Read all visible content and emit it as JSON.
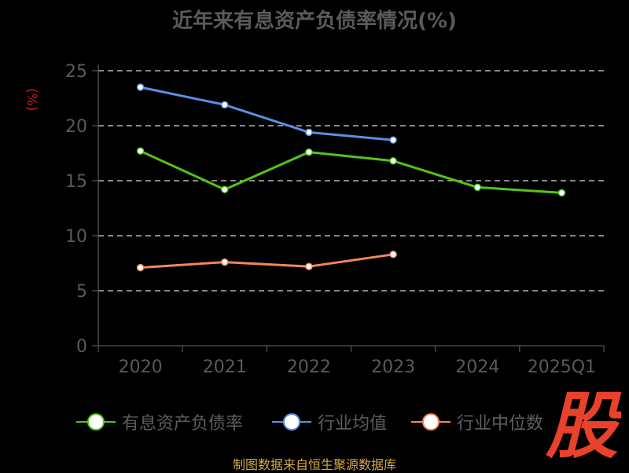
{
  "chart_data": {
    "type": "line",
    "title": "近年来有息资产负债率情况(%)",
    "ylabel": "(%)",
    "categories": [
      "2020",
      "2021",
      "2022",
      "2023",
      "2024",
      "2025Q1"
    ],
    "ylim": [
      0,
      25
    ],
    "yticks": [
      0,
      5,
      10,
      15,
      20,
      25
    ],
    "grid": true,
    "legend_position": "bottom",
    "series": [
      {
        "name": "有息资产负债率",
        "color": "#52c41a",
        "values": [
          17.7,
          14.2,
          17.6,
          16.8,
          14.4,
          13.9
        ]
      },
      {
        "name": "行业均值",
        "color": "#5b8fe6",
        "values": [
          23.5,
          21.9,
          19.4,
          18.7,
          null,
          null
        ]
      },
      {
        "name": "行业中位数",
        "color": "#f4875a",
        "values": [
          7.1,
          7.6,
          7.2,
          8.3,
          null,
          null
        ]
      }
    ]
  },
  "source": "制图数据来自恒生聚源数据库",
  "logo_char": "股",
  "logo_color": "#e8412c"
}
